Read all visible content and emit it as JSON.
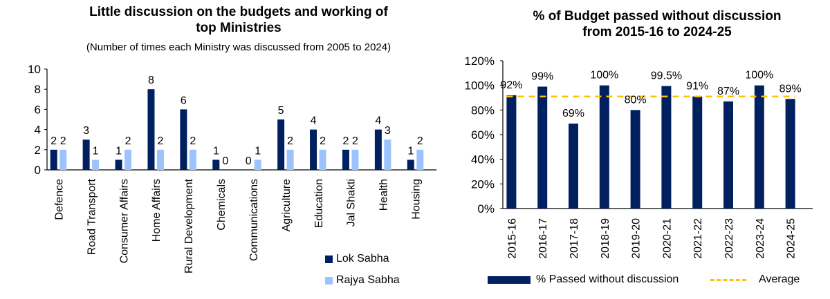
{
  "chart_data": [
    {
      "type": "bar",
      "title": "Little discussion on the budgets and working of top Ministries",
      "title_lines": [
        "Little discussion on the budgets and working of",
        "top Ministries"
      ],
      "subtitle": "(Number of times each Ministry was discussed from 2005 to 2024)",
      "xlabel": "",
      "ylabel": "",
      "ylim": [
        0,
        10
      ],
      "yticks": [
        0,
        2,
        4,
        6,
        8,
        10
      ],
      "ytick_labels": [
        "0",
        "2",
        "4",
        "6",
        "8",
        "10"
      ],
      "grid": false,
      "legend_position": "bottom-right",
      "categories": [
        "Defence",
        "Road Transport",
        "Consumer Affairs",
        "Home Affairs",
        "Rural Development",
        "Chemicals",
        "Communications",
        "Agriculture",
        "Education",
        "Jal Shakti",
        "Health",
        "Housing"
      ],
      "series": [
        {
          "name": "Lok Sabha",
          "color": "#002060",
          "values": [
            2,
            3,
            1,
            8,
            6,
            1,
            0,
            5,
            4,
            2,
            4,
            1
          ]
        },
        {
          "name": "Rajya Sabha",
          "color": "#9DC3FF",
          "values": [
            2,
            1,
            2,
            2,
            2,
            0,
            1,
            2,
            2,
            2,
            3,
            2
          ]
        }
      ]
    },
    {
      "type": "bar",
      "title": "% of Budget passed without discussion from 2015-16 to 2024-25",
      "title_lines": [
        "% of Budget passed without discussion",
        "from 2015-16 to 2024-25"
      ],
      "xlabel": "",
      "ylabel": "",
      "ylim": [
        0,
        120
      ],
      "yticks": [
        0,
        20,
        40,
        60,
        80,
        100,
        120
      ],
      "ytick_labels": [
        "0%",
        "20%",
        "40%",
        "60%",
        "80%",
        "100%",
        "120%"
      ],
      "grid": false,
      "legend_position": "bottom",
      "categories": [
        "2015-16",
        "2016-17",
        "2017-18",
        "2018-19",
        "2019-20",
        "2020-21",
        "2021-22",
        "2022-23",
        "2023-24",
        "2024-25"
      ],
      "series": [
        {
          "name": "% Passed without discussion",
          "color": "#002060",
          "values": [
            92,
            99,
            69,
            100,
            80,
            99.5,
            91,
            87,
            100,
            89
          ],
          "labels": [
            "92%",
            "99%",
            "69%",
            "100%",
            "80%",
            "99.5%",
            "91%",
            "87%",
            "100%",
            "89%"
          ]
        },
        {
          "name": "Average",
          "color": "#FFC000",
          "style": "dashed",
          "value": 91
        }
      ]
    }
  ]
}
